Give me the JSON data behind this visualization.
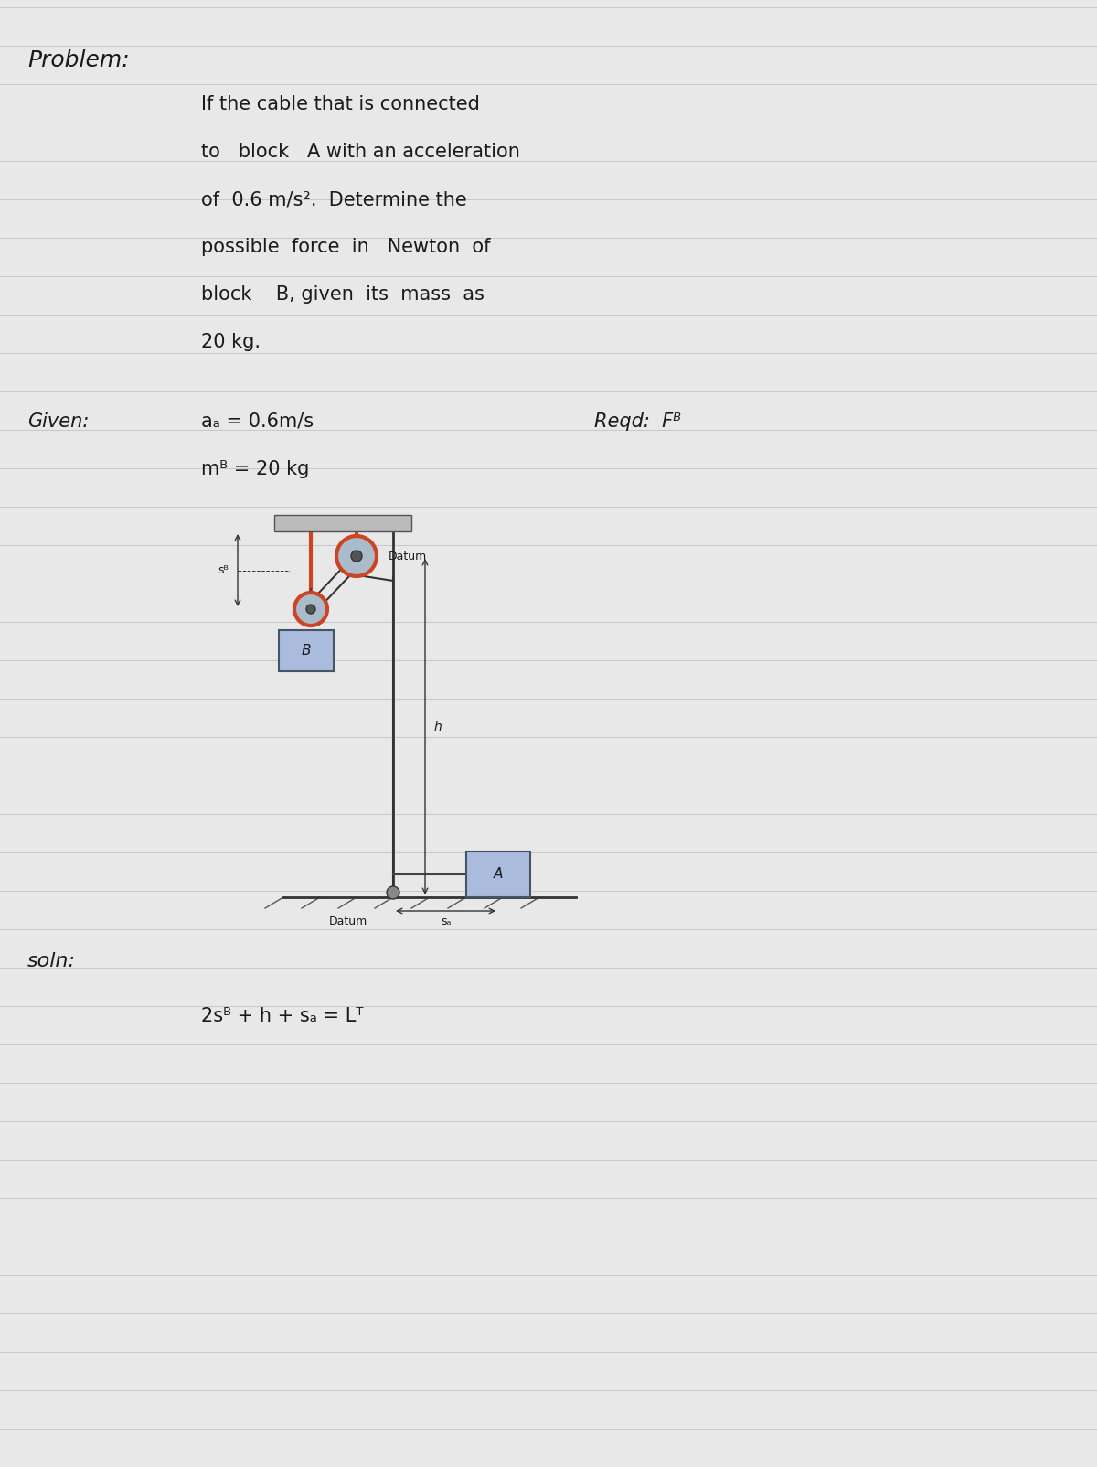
{
  "bg_color": "#e8e8e8",
  "line_color": "#c8c8c8",
  "text_color": "#1a1a1a",
  "title": "Problem:",
  "problem_text": [
    "If the cable that is connected",
    "to   block   A with an acceleration",
    "of  0.6 m/s².  Determine the",
    "possible  force  in   Newton  of",
    "block    B, given  its  mass  as",
    "20 kg."
  ],
  "given_label": "Given:",
  "given_aA": "aₐ = 0.6m/s",
  "given_mB": "mᴮ = 20 kg",
  "reqd_label": "Reqd:",
  "reqd_val": "Fᴮ",
  "soln_label": "soln:",
  "soln_eq": "2sᴮ + h + sₐ = Lᵀ",
  "diagram_title_top": "Datum",
  "diagram_title_bot": "Datum",
  "label_sB": "sᴮ",
  "label_h": "h",
  "label_sA": "sₐ",
  "label_B": "B",
  "label_A": "A",
  "pulley_color_outer": "#cc4422",
  "pulley_color_inner": "#aabbcc",
  "block_color": "#aabbdd",
  "cable_color": "#222222",
  "support_color": "#bbbbbb"
}
